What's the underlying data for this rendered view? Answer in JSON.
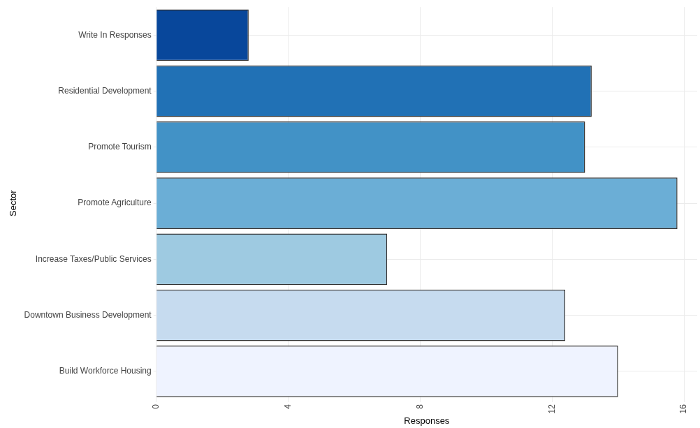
{
  "chart_data": {
    "type": "bar",
    "orientation": "horizontal",
    "xlabel": "Responses",
    "ylabel": "Sector",
    "categories": [
      "Write In Responses",
      "Residential Development",
      "Promote Tourism",
      "Promote Agriculture",
      "Increase Taxes/Public Services",
      "Downtown Business Development",
      "Build Workforce Housing"
    ],
    "values": [
      2.8,
      13.2,
      13.0,
      15.8,
      7.0,
      12.4,
      14.0
    ],
    "colors": [
      "#08479b",
      "#2171b5",
      "#4292c6",
      "#6baed6",
      "#9ecae1",
      "#c6dbef",
      "#eff3ff"
    ],
    "xlim": [
      0,
      16.4
    ],
    "xticks": [
      0,
      4,
      8,
      12,
      16
    ],
    "grid": true,
    "legend": false
  }
}
